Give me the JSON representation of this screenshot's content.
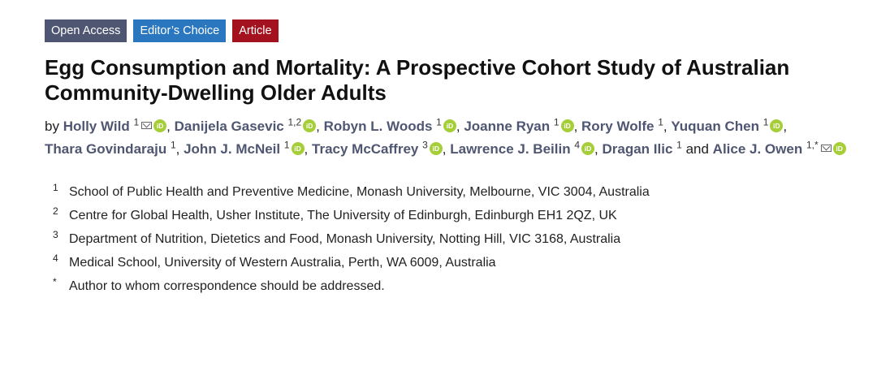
{
  "badges": {
    "open_access": "Open Access",
    "editors_choice": "Editor’s Choice",
    "article": "Article"
  },
  "title": "Egg Consumption and Mortality: A Prospective Cohort Study of Australian Community-Dwelling Older Adults",
  "authors": {
    "by": "by",
    "list": [
      {
        "name": "Holly Wild",
        "aff": "1",
        "email": true,
        "orcid": true
      },
      {
        "name": "Danijela Gasevic",
        "aff": "1,2",
        "email": false,
        "orcid": true
      },
      {
        "name": "Robyn L. Woods",
        "aff": "1",
        "email": false,
        "orcid": true
      },
      {
        "name": "Joanne Ryan",
        "aff": "1",
        "email": false,
        "orcid": true
      },
      {
        "name": "Rory Wolfe",
        "aff": "1",
        "email": false,
        "orcid": false
      },
      {
        "name": "Yuquan Chen",
        "aff": "1",
        "email": false,
        "orcid": true
      },
      {
        "name": "Thara Govindaraju",
        "aff": "1",
        "email": false,
        "orcid": false
      },
      {
        "name": "John J. McNeil",
        "aff": "1",
        "email": false,
        "orcid": true
      },
      {
        "name": "Tracy McCaffrey",
        "aff": "3",
        "email": false,
        "orcid": true
      },
      {
        "name": "Lawrence J. Beilin",
        "aff": "4",
        "email": false,
        "orcid": true
      },
      {
        "name": "Dragan Ilic",
        "aff": "1",
        "email": false,
        "orcid": false
      },
      {
        "name": "Alice J. Owen",
        "aff": "1,*",
        "email": true,
        "orcid": true
      }
    ],
    "and": "and"
  },
  "orcid_label": "iD",
  "affiliations": [
    {
      "num": "1",
      "text": "School of Public Health and Preventive Medicine, Monash University, Melbourne, VIC 3004, Australia"
    },
    {
      "num": "2",
      "text": "Centre for Global Health, Usher Institute, The University of Edinburgh, Edinburgh EH1 2QZ, UK"
    },
    {
      "num": "3",
      "text": "Department of Nutrition, Dietetics and Food, Monash University, Notting Hill, VIC 3168, Australia"
    },
    {
      "num": "4",
      "text": "Medical School, University of Western Australia, Perth, WA 6009, Australia"
    },
    {
      "num": "*",
      "text": "Author to whom correspondence should be addressed."
    }
  ]
}
